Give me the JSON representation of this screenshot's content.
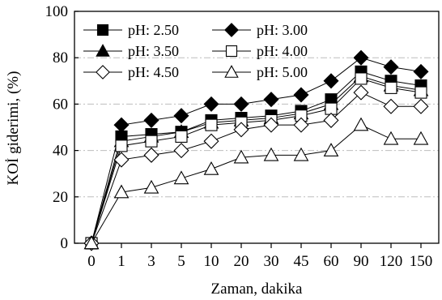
{
  "chart_data": {
    "type": "line",
    "title": "",
    "xlabel": "Zaman, dakika",
    "ylabel": "KOİ giderimi, (%)",
    "categories": [
      "0",
      "1",
      "3",
      "5",
      "10",
      "20",
      "30",
      "45",
      "60",
      "90",
      "120",
      "150"
    ],
    "y_ticks": [
      "0",
      "20",
      "40",
      "60",
      "80",
      "100"
    ],
    "ylim": [
      0,
      100
    ],
    "grid": "horizontal dash-dot",
    "legend_position": "top-left",
    "series": [
      {
        "name": "pH: 2.50",
        "marker": "square",
        "fill": "filled",
        "values": [
          0,
          46,
          47,
          48,
          53,
          54,
          55,
          57,
          62,
          74,
          70,
          68
        ]
      },
      {
        "name": "pH: 3.00",
        "marker": "diamond",
        "fill": "filled",
        "values": [
          0,
          51,
          53,
          55,
          60,
          60,
          62,
          64,
          70,
          80,
          76,
          74
        ]
      },
      {
        "name": "pH: 3.50",
        "marker": "triangle",
        "fill": "filled",
        "values": [
          0,
          44,
          46,
          48,
          52,
          53,
          54,
          56,
          60,
          72,
          68,
          66
        ]
      },
      {
        "name": "pH: 4.00",
        "marker": "square",
        "fill": "open",
        "values": [
          0,
          42,
          44,
          46,
          51,
          52,
          53,
          55,
          58,
          71,
          67,
          65
        ]
      },
      {
        "name": "pH: 4.50",
        "marker": "diamond",
        "fill": "open",
        "values": [
          0,
          36,
          38,
          40,
          44,
          49,
          51,
          51,
          53,
          65,
          59,
          59
        ]
      },
      {
        "name": "pH: 5.00",
        "marker": "triangle",
        "fill": "open",
        "values": [
          0,
          22,
          24,
          28,
          32,
          37,
          38,
          38,
          40,
          51,
          45,
          45
        ]
      }
    ]
  }
}
